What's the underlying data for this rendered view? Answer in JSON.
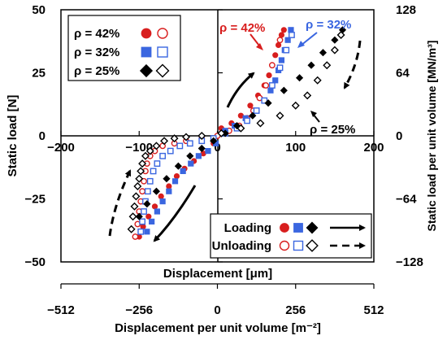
{
  "chart_data": {
    "type": "scatter",
    "xlabel": "Displacement [μm]",
    "ylabel": "Static load [N]",
    "x2label": "Displacement per unit volume [m⁻²]",
    "y2label": "Static load per unit volume [MN/m³]",
    "xlim": [
      -200,
      200
    ],
    "ylim": [
      -50,
      50
    ],
    "x2lim": [
      -512,
      512
    ],
    "y2lim": [
      -128,
      128
    ],
    "x_ticks": [
      "−200",
      "−100",
      "0",
      "100",
      "200"
    ],
    "y_ticks": [
      "50",
      "25",
      "0",
      "−25",
      "−50"
    ],
    "x2_ticks": [
      "−512",
      "−256",
      "0",
      "256",
      "512"
    ],
    "y2_ticks": [
      "128",
      "64",
      "0",
      "−64",
      "−128"
    ],
    "grid": false,
    "legend_position": "top-left",
    "colors": {
      "rho42": "#d81e1e",
      "rho32": "#3a66e0",
      "rho25": "#000000"
    },
    "annotations": {
      "a42": "ρ = 42%",
      "a32": "ρ = 32%",
      "a25": "ρ = 25%"
    },
    "legend": {
      "entries": [
        "ρ = 42%",
        "ρ = 32%",
        "ρ = 25%"
      ],
      "loading": "Loading",
      "unloading": "Unloading"
    },
    "series": [
      {
        "name": "ρ = 42%",
        "mode": "Loading",
        "x": [
          -100,
          -95,
          -88,
          -80,
          -72,
          -62,
          -52,
          -42,
          -30,
          -18,
          -5,
          5,
          18,
          30,
          42,
          52,
          60,
          66,
          70,
          74,
          78,
          82,
          85
        ],
        "y": [
          -40,
          -36,
          -32,
          -28,
          -24,
          -20,
          -16,
          -13,
          -10,
          -7,
          -3,
          3,
          5,
          8,
          12,
          16,
          20,
          24,
          28,
          32,
          36,
          40,
          42
        ]
      },
      {
        "name": "ρ = 42%",
        "mode": "Unloading",
        "x": [
          -105,
          -102,
          -100,
          -98,
          -96,
          -94,
          -92,
          -90,
          -86,
          -80,
          -70,
          -55,
          -40,
          -20,
          0,
          15,
          28,
          38,
          46,
          54,
          62,
          70,
          80
        ],
        "y": [
          -40,
          -35,
          -30,
          -26,
          -22,
          -18,
          -14,
          -11,
          -8,
          -6,
          -4,
          -3,
          -2,
          -1,
          0,
          2,
          4,
          7,
          10,
          15,
          20,
          28,
          38
        ]
      },
      {
        "name": "ρ = 32%",
        "mode": "Loading",
        "x": [
          -90,
          -84,
          -77,
          -70,
          -62,
          -54,
          -44,
          -34,
          -24,
          -12,
          -2,
          10,
          22,
          36,
          50,
          60,
          68,
          74,
          78,
          82,
          86,
          90,
          94
        ],
        "y": [
          -38,
          -34,
          -30,
          -26,
          -22,
          -18,
          -14,
          -11,
          -8,
          -6,
          -3,
          2,
          4,
          7,
          10,
          14,
          18,
          22,
          26,
          30,
          34,
          38,
          42
        ]
      },
      {
        "name": "ρ = 32%",
        "mode": "Unloading",
        "x": [
          -98,
          -96,
          -94,
          -92,
          -89,
          -86,
          -82,
          -77,
          -70,
          -60,
          -48,
          -35,
          -20,
          -5,
          10,
          25,
          38,
          50,
          60,
          70,
          80,
          88,
          95
        ],
        "y": [
          -38,
          -34,
          -30,
          -26,
          -22,
          -18,
          -14,
          -11,
          -8,
          -6,
          -4,
          -3,
          -2,
          -1,
          1,
          3,
          6,
          10,
          14,
          20,
          27,
          34,
          40
        ]
      },
      {
        "name": "ρ = 25%",
        "mode": "Loading",
        "x": [
          -110,
          -100,
          -90,
          -78,
          -65,
          -50,
          -35,
          -20,
          -5,
          10,
          25,
          45,
          65,
          85,
          105,
          120,
          135,
          150,
          160
        ],
        "y": [
          -37,
          -32,
          -27,
          -22,
          -17,
          -12,
          -8,
          -5,
          -2,
          1,
          4,
          8,
          13,
          18,
          23,
          28,
          33,
          38,
          42
        ]
      },
      {
        "name": "ρ = 25%",
        "mode": "Unloading",
        "x": [
          -110,
          -108,
          -106,
          -104,
          -102,
          -100,
          -98,
          -96,
          -92,
          -86,
          -78,
          -68,
          -55,
          -40,
          -20,
          5,
          30,
          55,
          80,
          100,
          115,
          128,
          140,
          150,
          158
        ],
        "y": [
          -37,
          -32,
          -28,
          -24,
          -20,
          -17,
          -14,
          -11,
          -8,
          -6,
          -4,
          -2,
          -1,
          -0.5,
          0,
          1,
          3,
          5,
          8,
          12,
          16,
          22,
          28,
          34,
          40
        ]
      }
    ]
  }
}
